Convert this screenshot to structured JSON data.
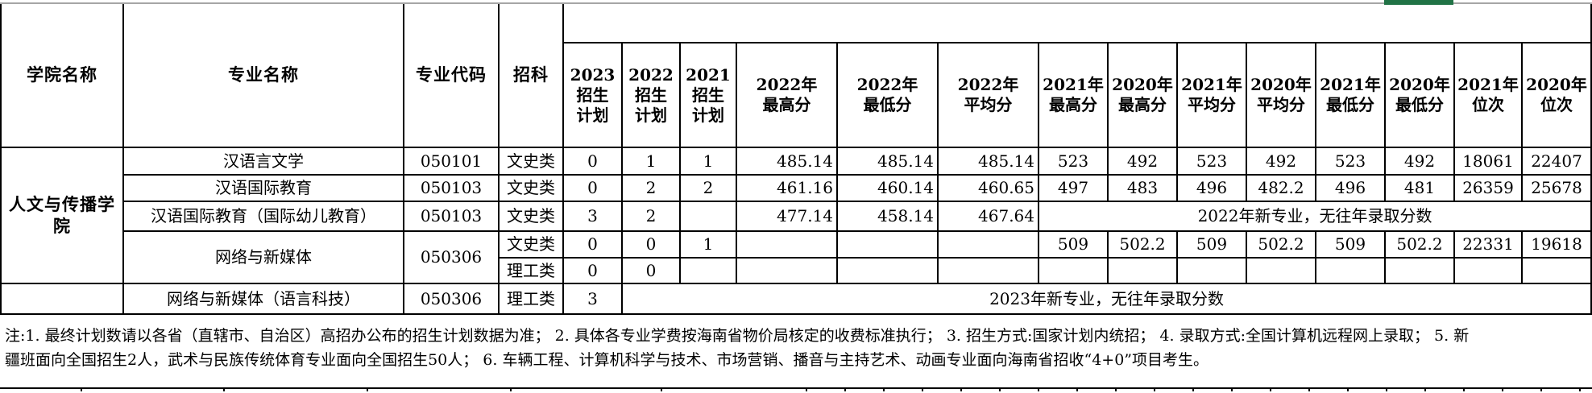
{
  "colors": {
    "selection_green": "#217346",
    "grid_gray": "#a6a6a6",
    "border_black": "#000000"
  },
  "table": {
    "corner_headers": {
      "college": "学院名称",
      "major": "专业名称",
      "code": "专业代码",
      "subject": "招科"
    },
    "year_headers": [
      {
        "line1": "2023招生",
        "line2": "计划"
      },
      {
        "line1": "2022招生",
        "line2": "计划"
      },
      {
        "line1": "2021招生",
        "line2": "计划"
      },
      {
        "line1": "2022年",
        "line2": "最高分"
      },
      {
        "line1": "2022年",
        "line2": "最低分"
      },
      {
        "line1": "2022年",
        "line2": "平均分"
      },
      {
        "line1": "2021年",
        "line2": "最高分"
      },
      {
        "line1": "2020年",
        "line2": "最高分"
      },
      {
        "line1": "2021年",
        "line2": "平均分"
      },
      {
        "line1": "2020年",
        "line2": "平均分"
      },
      {
        "line1": "2021年",
        "line2": "最低分"
      },
      {
        "line1": "2020年",
        "line2": "最低分"
      },
      {
        "line1": "2021年",
        "line2": "位次"
      },
      {
        "line1": "2020年",
        "line2": "位次"
      }
    ],
    "college_name": "人文与传播学院",
    "rows": [
      {
        "major": "汉语言文学",
        "code": "050101",
        "subject": "文史类",
        "plan2023": "0",
        "plan2022": "1",
        "plan2021": "1",
        "max2022": "485.14",
        "min2022": "485.14",
        "avg2022": "485.14",
        "max2021": "523",
        "max2020": "492",
        "avg2021": "523",
        "avg2020": "492",
        "min2021": "523",
        "min2020": "492",
        "rank2021": "18061",
        "rank2020": "22407"
      },
      {
        "major": "汉语国际教育",
        "code": "050103",
        "subject": "文史类",
        "plan2023": "0",
        "plan2022": "2",
        "plan2021": "2",
        "max2022": "461.16",
        "min2022": "460.14",
        "avg2022": "460.65",
        "max2021": "497",
        "max2020": "483",
        "avg2021": "496",
        "avg2020": "482.2",
        "min2021": "496",
        "min2020": "481",
        "rank2021": "26359",
        "rank2020": "25678"
      },
      {
        "major": "汉语国际教育（国际幼儿教育）",
        "code": "050103",
        "subject": "文史类",
        "plan2023": "3",
        "plan2022": "2",
        "plan2021": "",
        "max2022": "477.14",
        "min2022": "458.14",
        "avg2022": "467.64",
        "merged_note": "2022年新专业，无往年录取分数"
      },
      {
        "major": "网络与新媒体",
        "code": "050306",
        "subject": "文史类",
        "plan2023": "0",
        "plan2022": "0",
        "plan2021": "1",
        "max2022": "",
        "min2022": "",
        "avg2022": "",
        "max2021": "509",
        "max2020": "502.2",
        "avg2021": "509",
        "avg2020": "502.2",
        "min2021": "509",
        "min2020": "502.2",
        "rank2021": "22331",
        "rank2020": "19618"
      },
      {
        "subject": "理工类",
        "plan2023": "0",
        "plan2022": "0",
        "plan2021": "",
        "max2022": "",
        "min2022": "",
        "avg2022": "",
        "max2021": "",
        "max2020": "",
        "avg2021": "",
        "avg2020": "",
        "min2021": "",
        "min2020": "",
        "rank2021": "",
        "rank2020": ""
      },
      {
        "college": "",
        "major": "网络与新媒体（语言科技）",
        "code": "050306",
        "subject": "理工类",
        "plan2023": "3",
        "merged_note": "2023年新专业，无往年录取分数"
      }
    ]
  },
  "note": {
    "lines": [
      "注:1. 最终计划数请以各省（直辖市、自治区）高招办公布的招生计划数据为准；  2.  具体各专业学费按海南省物价局核定的收费标准执行；  3.  招生方式:国家计划内统招；  4.  录取方式:全国计算机远程网上录取；  5.  新",
      "疆班面向全国招生2人，武术与民族传统体育专业面向全国招生50人；  6.  车辆工程、计算机科学与技术、市场营销、播音与主持艺术、动画专业面向海南省招收“4+0”项目考生。"
    ]
  },
  "bottom_tick_positions": [
    100,
    277,
    455,
    633,
    820,
    1000,
    1048,
    1096,
    1144,
    1192,
    1240,
    1288,
    1336,
    1384,
    1432,
    1480,
    1528,
    1576,
    1624,
    1672,
    1720,
    1768,
    1816,
    1864,
    1912,
    1960
  ]
}
